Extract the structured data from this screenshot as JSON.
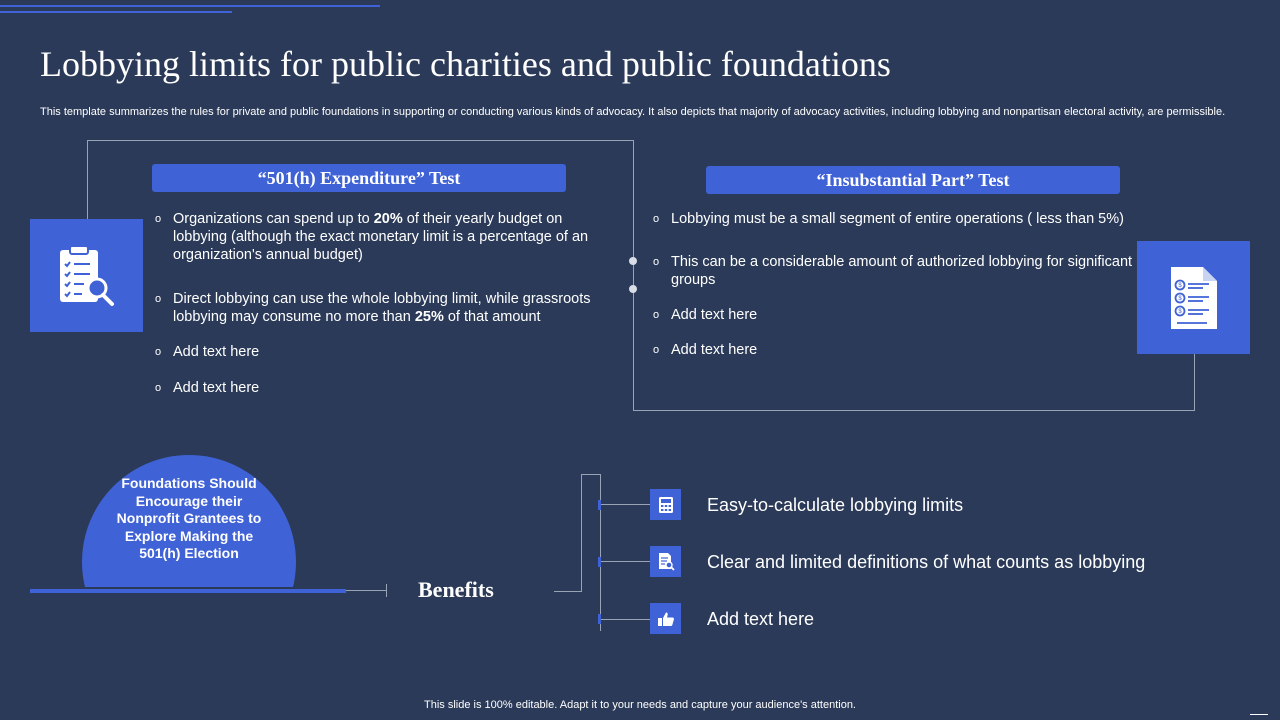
{
  "title": "Lobbying limits for public charities and public foundations",
  "subtitle": "This template summarizes the rules for private and public foundations in supporting or conducting various kinds of advocacy. It also depicts that majority of advocacy activities, including lobbying and nonpartisan electoral activity, are permissible.",
  "left_section": {
    "heading": "“501(h) Expenditure” Test",
    "icon": "clipboard-magnifier-icon",
    "bullets": [
      {
        "pre": "Organizations can spend up to ",
        "bold": "20%",
        "post": " of their yearly budget on lobbying (although the exact monetary limit is a percentage of an organization's annual budget)"
      },
      {
        "pre": "Direct lobbying can use the whole lobbying limit, while grassroots lobbying may consume no more than ",
        "bold": "25%",
        "post": " of that amount"
      },
      {
        "pre": "Add text here",
        "bold": "",
        "post": ""
      },
      {
        "pre": "Add text here",
        "bold": "",
        "post": ""
      }
    ]
  },
  "right_section": {
    "heading": "“Insubstantial Part” Test",
    "icon": "dollar-list-document-icon",
    "bullets": [
      "Lobbying must be a small segment of entire operations ( less than 5%)",
      "This can be a considerable amount of authorized lobbying for significant groups",
      "Add text here",
      "Add text here"
    ]
  },
  "circle_text": "Foundations Should Encourage their Nonprofit Grantees to Explore Making the 501(h) Election",
  "benefits_label": "Benefits",
  "benefits": [
    {
      "icon": "calculator-icon",
      "text": "Easy-to-calculate lobbying limits"
    },
    {
      "icon": "document-search-icon",
      "text": "Clear and limited definitions of what counts as lobbying"
    },
    {
      "icon": "thumbs-up-icon",
      "text": "Add text here"
    }
  ],
  "footer": "This slide is 100% editable. Adapt it to your needs and capture your audience's attention.",
  "colors": {
    "background": "#2b3a58",
    "accent": "#3f62d6",
    "line": "#9aa3b5"
  }
}
